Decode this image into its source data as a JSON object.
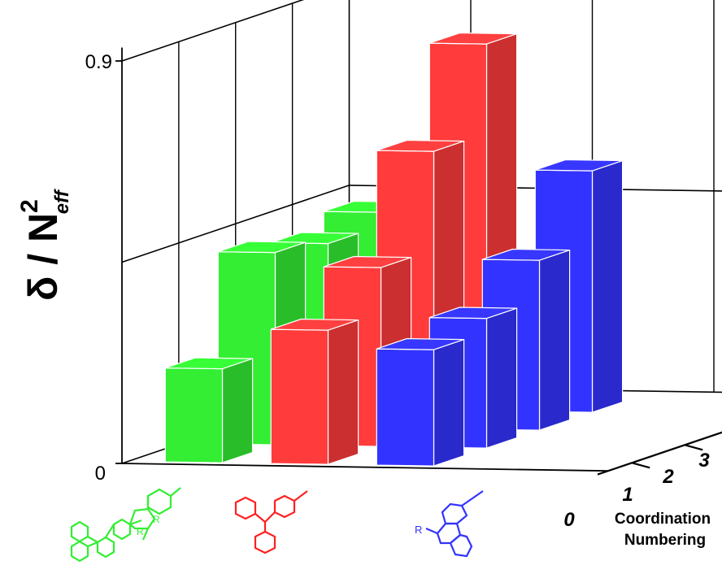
{
  "chart_data": {
    "type": "bar",
    "projection": "3d",
    "ylabel_main": "δ / N",
    "ylabel_sup": "2",
    "ylabel_sub": "eff",
    "ylim": [
      0,
      0.9
    ],
    "yticks": [
      "0",
      "0.9"
    ],
    "grid": true,
    "depth_label_line1": "Coordination",
    "depth_label_line2": "Numbering",
    "depth_ticks": [
      "0",
      "1",
      "2",
      "3"
    ],
    "groups": [
      "fluorene-diphenylamine",
      "triphenylamine",
      "carbazole"
    ],
    "group_colors": [
      "#33ee33",
      "#ff3b3b",
      "#3333ff"
    ],
    "values": [
      [
        0.21,
        0.43,
        0.41,
        0.44
      ],
      [
        0.3,
        0.4,
        0.62,
        0.82
      ],
      [
        0.26,
        0.29,
        0.38,
        0.54
      ]
    ]
  },
  "molecules": {
    "substituent_r": "R"
  }
}
